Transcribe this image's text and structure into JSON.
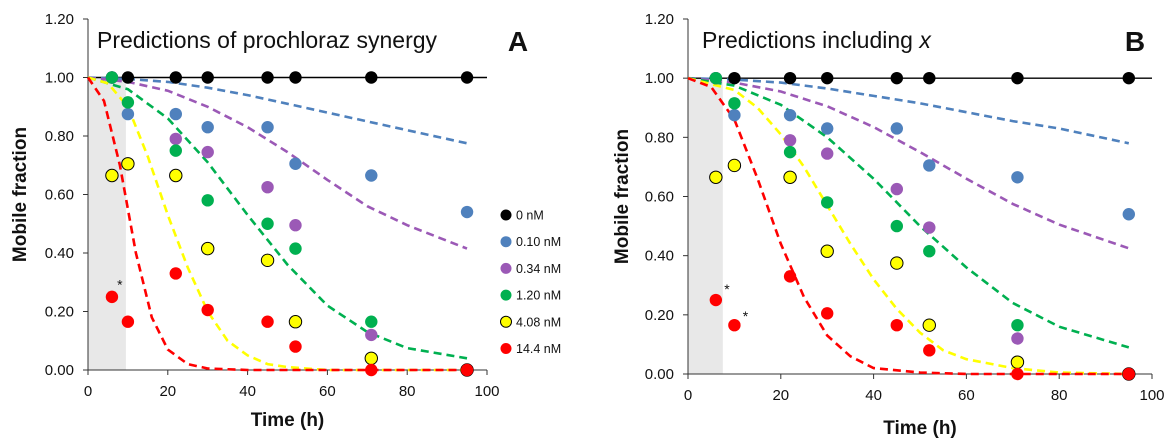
{
  "chart_data": [
    {
      "type": "scatter",
      "panel_label": "A",
      "title": "Predictions of prochloraz synergy",
      "title_italic_suffix": "",
      "xlabel": "Time (h)",
      "ylabel": "Mobile fraction",
      "xlim": [
        0,
        100
      ],
      "ylim": [
        0,
        1.2
      ],
      "x_ticks": [
        "0",
        "20",
        "40",
        "60",
        "80",
        "100"
      ],
      "y_ticks": [
        "0.00",
        "0.20",
        "0.40",
        "0.60",
        "0.80",
        "1.00",
        "1.20"
      ],
      "shaded_x_range": [
        0,
        9.5
      ],
      "legend_position": "right",
      "series": [
        {
          "name": "0 nM",
          "color": "#000000",
          "outline": false,
          "points": [
            [
              6,
              1.0
            ],
            [
              10,
              1.0
            ],
            [
              22,
              1.0
            ],
            [
              30,
              1.0
            ],
            [
              45,
              1.0
            ],
            [
              52,
              1.0
            ],
            [
              71,
              1.0
            ],
            [
              95,
              1.0
            ]
          ],
          "curve": {
            "kind": "solid",
            "x": [
              0,
              100
            ],
            "y": [
              1.0,
              1.0
            ]
          }
        },
        {
          "name": "0.10 nM",
          "color": "#4F81BD",
          "outline": false,
          "points": [
            [
              6,
              1.0
            ],
            [
              10,
              0.875
            ],
            [
              22,
              0.875
            ],
            [
              30,
              0.83
            ],
            [
              45,
              0.83
            ],
            [
              52,
              0.705
            ],
            [
              71,
              0.665
            ],
            [
              95,
              0.54
            ]
          ],
          "curve": {
            "kind": "dashed",
            "x": [
              0,
              10,
              20,
              30,
              40,
              50,
              60,
              70,
              80,
              95
            ],
            "y": [
              1.0,
              0.995,
              0.985,
              0.965,
              0.94,
              0.91,
              0.88,
              0.85,
              0.82,
              0.775
            ]
          }
        },
        {
          "name": "0.34 nM",
          "color": "#9B59B6",
          "outline": false,
          "points": [
            [
              6,
              1.0
            ],
            [
              22,
              0.79
            ],
            [
              30,
              0.745
            ],
            [
              45,
              0.625
            ],
            [
              52,
              0.495
            ],
            [
              71,
              0.12
            ]
          ],
          "curve": {
            "kind": "dashed",
            "x": [
              0,
              10,
              20,
              30,
              40,
              50,
              60,
              70,
              80,
              95
            ],
            "y": [
              1.0,
              0.985,
              0.955,
              0.9,
              0.83,
              0.745,
              0.65,
              0.56,
              0.495,
              0.415
            ]
          }
        },
        {
          "name": "1.20 nM",
          "color": "#00B050",
          "outline": false,
          "points": [
            [
              6,
              1.0
            ],
            [
              10,
              0.915
            ],
            [
              22,
              0.75
            ],
            [
              30,
              0.58
            ],
            [
              45,
              0.5
            ],
            [
              52,
              0.415
            ],
            [
              71,
              0.165
            ]
          ],
          "curve": {
            "kind": "dashed",
            "x": [
              0,
              10,
              20,
              30,
              40,
              50,
              60,
              70,
              80,
              95
            ],
            "y": [
              1.0,
              0.96,
              0.86,
              0.71,
              0.53,
              0.36,
              0.22,
              0.13,
              0.075,
              0.04
            ]
          }
        },
        {
          "name": "4.08 nM",
          "color": "#FFFF00",
          "outline": true,
          "points": [
            [
              6,
              0.665
            ],
            [
              10,
              0.705
            ],
            [
              22,
              0.665
            ],
            [
              30,
              0.415
            ],
            [
              45,
              0.375
            ],
            [
              52,
              0.165
            ],
            [
              71,
              0.04
            ],
            [
              95,
              0.0
            ]
          ],
          "curve": {
            "kind": "dashed",
            "x": [
              0,
              5,
              10,
              15,
              20,
              25,
              30,
              35,
              40,
              45,
              50,
              60,
              70,
              95
            ],
            "y": [
              1.0,
              0.98,
              0.9,
              0.73,
              0.53,
              0.35,
              0.2,
              0.1,
              0.05,
              0.02,
              0.01,
              0.0,
              0.0,
              0.0
            ]
          }
        },
        {
          "name": "14.4 nM",
          "color": "#FF0000",
          "outline": false,
          "points": [
            [
              6,
              0.25
            ],
            [
              10,
              0.165
            ],
            [
              22,
              0.33
            ],
            [
              30,
              0.205
            ],
            [
              45,
              0.165
            ],
            [
              52,
              0.08
            ],
            [
              71,
              0.0
            ],
            [
              95,
              0.0
            ]
          ],
          "curve": {
            "kind": "dashed",
            "x": [
              0,
              4,
              8,
              12,
              16,
              20,
              25,
              30,
              40,
              60,
              95
            ],
            "y": [
              1.0,
              0.92,
              0.7,
              0.4,
              0.18,
              0.07,
              0.02,
              0.005,
              0.0,
              0.0,
              0.0
            ]
          }
        }
      ],
      "annotations": [
        {
          "text": "*",
          "x": 7.3,
          "y": 0.275
        }
      ]
    },
    {
      "type": "scatter",
      "panel_label": "B",
      "title": "Predictions including ",
      "title_italic_suffix": "x",
      "xlabel": "Time (h)",
      "ylabel": "Mobile fraction",
      "xlim": [
        0,
        100
      ],
      "ylim": [
        0,
        1.2
      ],
      "x_ticks": [
        "0",
        "20",
        "40",
        "60",
        "80",
        "100"
      ],
      "y_ticks": [
        "0.00",
        "0.20",
        "0.40",
        "0.60",
        "0.80",
        "1.00",
        "1.20"
      ],
      "shaded_x_range": [
        0,
        7.5
      ],
      "legend_position": "none",
      "series": [
        {
          "name": "0 nM",
          "color": "#000000",
          "outline": false,
          "points": [
            [
              6,
              1.0
            ],
            [
              10,
              1.0
            ],
            [
              22,
              1.0
            ],
            [
              30,
              1.0
            ],
            [
              45,
              1.0
            ],
            [
              52,
              1.0
            ],
            [
              71,
              1.0
            ],
            [
              95,
              1.0
            ]
          ],
          "curve": {
            "kind": "solid",
            "x": [
              0,
              100
            ],
            "y": [
              1.0,
              1.0
            ]
          }
        },
        {
          "name": "0.10 nM",
          "color": "#4F81BD",
          "outline": false,
          "points": [
            [
              6,
              1.0
            ],
            [
              10,
              0.875
            ],
            [
              22,
              0.875
            ],
            [
              30,
              0.83
            ],
            [
              45,
              0.83
            ],
            [
              52,
              0.705
            ],
            [
              71,
              0.665
            ],
            [
              95,
              0.54
            ]
          ],
          "curve": {
            "kind": "dashed",
            "x": [
              0,
              10,
              20,
              30,
              40,
              50,
              60,
              70,
              80,
              95
            ],
            "y": [
              1.0,
              0.995,
              0.985,
              0.965,
              0.94,
              0.915,
              0.885,
              0.855,
              0.83,
              0.78
            ]
          }
        },
        {
          "name": "0.34 nM",
          "color": "#9B59B6",
          "outline": false,
          "points": [
            [
              6,
              1.0
            ],
            [
              22,
              0.79
            ],
            [
              30,
              0.745
            ],
            [
              45,
              0.625
            ],
            [
              52,
              0.495
            ],
            [
              71,
              0.12
            ]
          ],
          "curve": {
            "kind": "dashed",
            "x": [
              0,
              10,
              20,
              30,
              40,
              50,
              60,
              70,
              80,
              95
            ],
            "y": [
              1.0,
              0.985,
              0.955,
              0.905,
              0.835,
              0.75,
              0.66,
              0.575,
              0.505,
              0.425
            ]
          }
        },
        {
          "name": "1.20 nM",
          "color": "#00B050",
          "outline": false,
          "points": [
            [
              6,
              1.0
            ],
            [
              10,
              0.915
            ],
            [
              22,
              0.75
            ],
            [
              30,
              0.58
            ],
            [
              45,
              0.5
            ],
            [
              52,
              0.415
            ],
            [
              71,
              0.165
            ]
          ],
          "curve": {
            "kind": "dashed",
            "x": [
              0,
              10,
              20,
              30,
              40,
              50,
              60,
              70,
              80,
              95
            ],
            "y": [
              1.0,
              0.975,
              0.91,
              0.8,
              0.66,
              0.5,
              0.36,
              0.24,
              0.16,
              0.09
            ]
          }
        },
        {
          "name": "4.08 nM",
          "color": "#FFFF00",
          "outline": true,
          "points": [
            [
              6,
              0.665
            ],
            [
              10,
              0.705
            ],
            [
              22,
              0.665
            ],
            [
              30,
              0.415
            ],
            [
              45,
              0.375
            ],
            [
              52,
              0.165
            ],
            [
              71,
              0.04
            ],
            [
              95,
              0.0
            ]
          ],
          "curve": {
            "kind": "dashed",
            "x": [
              0,
              10,
              15,
              20,
              25,
              30,
              35,
              40,
              45,
              50,
              55,
              60,
              70,
              80,
              95
            ],
            "y": [
              1.0,
              0.96,
              0.9,
              0.81,
              0.7,
              0.57,
              0.44,
              0.32,
              0.22,
              0.14,
              0.08,
              0.05,
              0.02,
              0.005,
              0.0
            ]
          }
        },
        {
          "name": "14.4 nM",
          "color": "#FF0000",
          "outline": false,
          "points": [
            [
              6,
              0.25
            ],
            [
              10,
              0.165
            ],
            [
              22,
              0.33
            ],
            [
              30,
              0.205
            ],
            [
              45,
              0.165
            ],
            [
              52,
              0.08
            ],
            [
              71,
              0.0
            ],
            [
              95,
              0.0
            ]
          ],
          "curve": {
            "kind": "dashed",
            "x": [
              0,
              5,
              10,
              15,
              20,
              25,
              30,
              35,
              40,
              50,
              60,
              95
            ],
            "y": [
              1.0,
              0.97,
              0.86,
              0.66,
              0.44,
              0.26,
              0.13,
              0.06,
              0.02,
              0.005,
              0.0,
              0.0
            ]
          }
        }
      ],
      "annotations": [
        {
          "text": "*",
          "x": 7.8,
          "y": 0.27
        },
        {
          "text": "*",
          "x": 11.8,
          "y": 0.18
        }
      ]
    }
  ]
}
